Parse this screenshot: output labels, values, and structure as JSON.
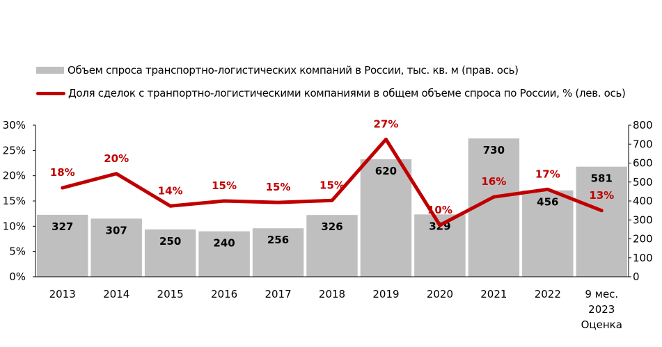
{
  "chart_data": {
    "type": "bar+line",
    "categories": [
      "2013",
      "2014",
      "2015",
      "2016",
      "2017",
      "2018",
      "2019",
      "2020",
      "2021",
      "2022",
      "9 мес.\n2023\nОценка"
    ],
    "series": [
      {
        "name": "Объем спроса транспортно-логистических компаний в России, тыс. кв. м (прав. ось)",
        "type": "bar",
        "axis": "right",
        "color": "#bfbfbf",
        "values": [
          327,
          307,
          250,
          240,
          256,
          326,
          620,
          329,
          730,
          456,
          581
        ],
        "labels": [
          "327",
          "307",
          "250",
          "240",
          "256",
          "326",
          "620",
          "329",
          "730",
          "456",
          "581"
        ]
      },
      {
        "name": "Доля сделок с транпортно-логистическими компаниями в общем объеме спроса по России, % (лев. ось)",
        "type": "line",
        "axis": "left",
        "color": "#c00000",
        "values": [
          17.6,
          20.4,
          14,
          15,
          14.7,
          15.1,
          27.2,
          10.2,
          15.8,
          17.3,
          13.1
        ],
        "labels": [
          "18%",
          "20%",
          "14%",
          "15%",
          "15%",
          "15%",
          "27%",
          "10%",
          "16%",
          "17%",
          "13%"
        ]
      }
    ],
    "left_axis": {
      "ylim": [
        0,
        30
      ],
      "ticks": [
        "0%",
        "5%",
        "10%",
        "15%",
        "20%",
        "25%",
        "30%"
      ]
    },
    "right_axis": {
      "ylim": [
        0,
        800
      ],
      "ticks": [
        "0",
        "100",
        "200",
        "300",
        "400",
        "500",
        "600",
        "700",
        "800"
      ]
    },
    "legend": "top-left",
    "grid": false
  }
}
